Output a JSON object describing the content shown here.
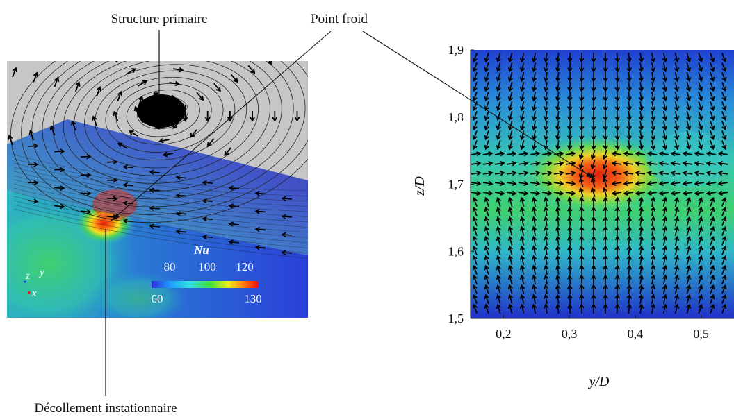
{
  "labels": {
    "primary_structure": "Structure primaire",
    "cold_spot": "Point froid",
    "unsteady_separation": "Décollement instationnaire"
  },
  "colorbar": {
    "title": "Nu",
    "upper_ticks": [
      "80",
      "100",
      "120"
    ],
    "lower_ticks": [
      "60",
      "130"
    ],
    "min": 60,
    "max": 130
  },
  "triad": {
    "z": "z",
    "y": "y",
    "x": "x"
  },
  "colors": {
    "background": "#ffffff",
    "render_backdrop": "#c6c6c6",
    "cold": "#1a1ec8",
    "hot": "#e81a0a"
  },
  "chart_data": {
    "type": "heatmap",
    "description_of_field": "Nu contour with in-plane velocity vectors",
    "xlabel": "y/D",
    "ylabel": "z/D",
    "xlim": [
      0.15,
      0.55
    ],
    "ylim": [
      1.5,
      1.9
    ],
    "xticks": [
      "0,2",
      "0,3",
      "0,4",
      "0,5"
    ],
    "xtick_values": [
      0.2,
      0.3,
      0.4,
      0.5
    ],
    "yticks": [
      "1,5",
      "1,6",
      "1,7",
      "1,8",
      "1,9"
    ],
    "ytick_values": [
      1.5,
      1.6,
      1.7,
      1.8,
      1.9
    ],
    "hotspot_center": [
      0.34,
      1.71
    ]
  }
}
